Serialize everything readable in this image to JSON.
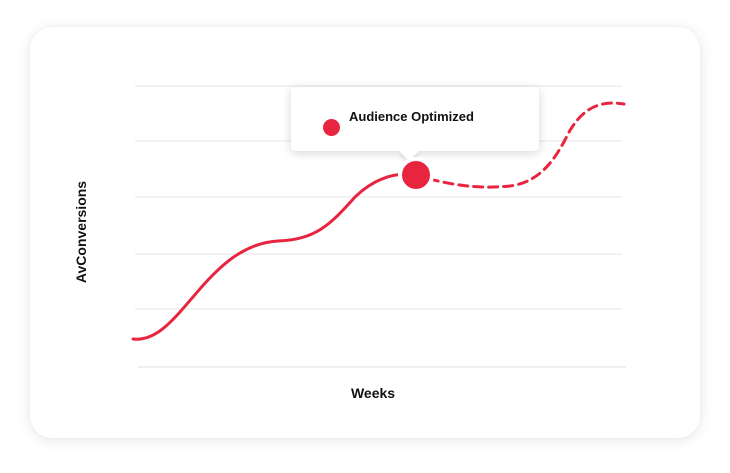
{
  "chart_data": {
    "type": "line",
    "xlabel": "Weeks",
    "ylabel": "AvConversions",
    "grid": true,
    "series": [
      {
        "style": "solid",
        "color": "#e8253f",
        "x": [
          0,
          1,
          2,
          3,
          4,
          5,
          6,
          7,
          8,
          9,
          10,
          11
        ],
        "y": [
          0.5,
          0.8,
          1.9,
          2.4,
          2.6,
          3.1,
          3.6,
          3.3,
          3.2,
          3.4,
          4.4,
          4.7
        ]
      }
    ],
    "highlight": {
      "label": "Audience Optimized",
      "color": "#e8253f"
    }
  },
  "colors": {
    "accent": "#e8253f",
    "grid": "#e6e6e6"
  }
}
